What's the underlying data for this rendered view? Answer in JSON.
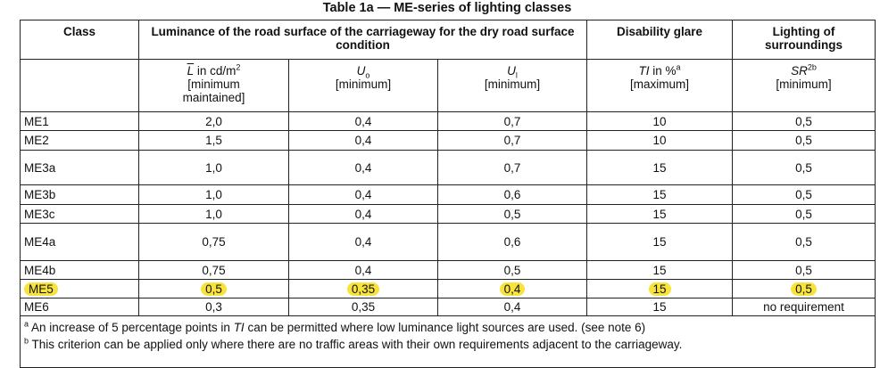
{
  "title": "Table 1a — ME-series of lighting classes",
  "header": {
    "class": "Class",
    "luminance": "Luminance of the road surface of the carriageway for the dry road surface condition",
    "glare": "Disability glare",
    "surroundings": "Lighting of surroundings",
    "sub": [
      {
        "symbol": "L",
        "rest": " in cd/m",
        "sup": "2",
        "note": "[minimum maintained]"
      },
      {
        "symbol": "U",
        "sub": "o",
        "note": "[minimum]"
      },
      {
        "symbol": "U",
        "sub": "l",
        "note": "[minimum]"
      },
      {
        "symbol": "TI",
        "rest": " in %",
        "sup": "a",
        "note": "[maximum]"
      },
      {
        "symbol": "SR",
        "sup": "2b",
        "note": "[minimum]"
      }
    ]
  },
  "rows": [
    [
      "ME1",
      "2,0",
      "0,4",
      "0,7",
      "10",
      "0,5"
    ],
    [
      "ME2",
      "1,5",
      "0,4",
      "0,7",
      "10",
      "0,5"
    ],
    [
      "ME3a",
      "1,0",
      "0,4",
      "0,7",
      "15",
      "0,5"
    ],
    [
      "ME3b",
      "1,0",
      "0,4",
      "0,6",
      "15",
      "0,5"
    ],
    [
      "ME3c",
      "1,0",
      "0,4",
      "0,5",
      "15",
      "0,5"
    ],
    [
      "ME4a",
      "0,75",
      "0,4",
      "0,6",
      "15",
      "0,5"
    ],
    [
      "ME4b",
      "0,75",
      "0,4",
      "0,5",
      "15",
      "0,5"
    ],
    [
      "ME5",
      "0,5",
      "0,35",
      "0,4",
      "15",
      "0,5"
    ],
    [
      "ME6",
      "0,3",
      "0,35",
      "0,4",
      "15",
      "no requirement"
    ]
  ],
  "highlight_row": 7,
  "highlight_color": "#f7e33c",
  "footnotes": [
    {
      "mark": "a",
      "parts": [
        "An increase of 5 percentage points in ",
        "TI",
        " can be permitted where low luminance light sources are used. (see note 6)"
      ]
    },
    {
      "mark": "b",
      "parts": [
        "This criterion can be applied only where there are no traffic areas with their own requirements adjacent to the carriageway."
      ]
    }
  ]
}
